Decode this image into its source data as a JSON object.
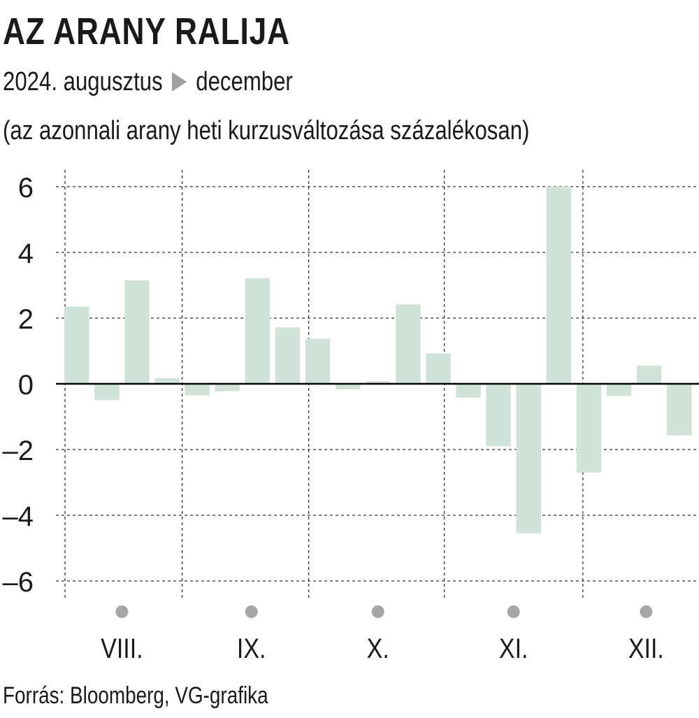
{
  "title": "AZ ARANY RALIJA",
  "subtitle": {
    "start": "2024. augusztus",
    "arrow_icon": "triangle-right-icon",
    "end": "december"
  },
  "subtitle2": "(az azonnali arany heti kurzusváltozása százalékosan)",
  "source": "Forrás: Bloomberg, VG-grafika",
  "colors": {
    "bar": "#d1e3d9",
    "grid": "#333333",
    "zero_line": "#000000",
    "month_dot": "#a6a6a6",
    "text": "#1a1a1a"
  },
  "chart_data": {
    "type": "bar",
    "title": "AZ ARANY RALIJA",
    "xlabel": "",
    "ylabel": "",
    "ylim": [
      -6,
      6
    ],
    "yticks": [
      6,
      4,
      2,
      0,
      -2,
      -4,
      -6
    ],
    "ytick_labels": [
      "6",
      "4",
      "2",
      "0",
      "–2",
      "–4",
      "–6"
    ],
    "grid": true,
    "months": [
      {
        "label": "VIII.",
        "center_week": 2
      },
      {
        "label": "IX.",
        "center_week": 6.3
      },
      {
        "label": "X.",
        "center_week": 10.5
      },
      {
        "label": "XI.",
        "center_week": 15
      },
      {
        "label": "XII.",
        "center_week": 19.4
      }
    ],
    "month_separators_after_week": [
      4,
      8.2,
      12.7,
      17.3
    ],
    "values": [
      2.35,
      -0.5,
      3.15,
      0.17,
      -0.35,
      -0.23,
      3.22,
      1.72,
      1.37,
      -0.17,
      0.08,
      2.42,
      0.93,
      -0.42,
      -1.9,
      -4.55,
      6.0,
      -2.7,
      -0.37,
      0.55,
      -1.57
    ]
  }
}
